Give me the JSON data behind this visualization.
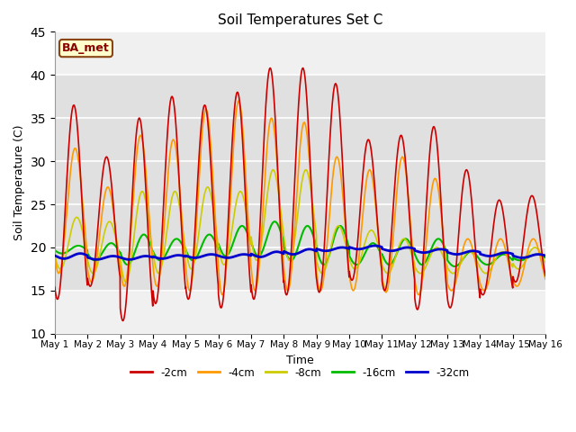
{
  "title": "Soil Temperatures Set C",
  "xlabel": "Time",
  "ylabel": "Soil Temperature (C)",
  "ylim": [
    10,
    45
  ],
  "xlim": [
    0,
    15
  ],
  "annotation": "BA_met",
  "bg_band": [
    15,
    40
  ],
  "bg_color": "#e0e0e0",
  "xtick_labels": [
    "May 1",
    "May 2",
    "May 3",
    "May 4",
    "May 5",
    "May 6",
    "May 7",
    "May 8",
    "May 9",
    "May 10",
    "May 11",
    "May 12",
    "May 13",
    "May 14",
    "May 15",
    "May 16"
  ],
  "legend": [
    {
      "label": "-2cm",
      "color": "#cc0000"
    },
    {
      "label": "-4cm",
      "color": "#ff9900"
    },
    {
      "label": "-8cm",
      "color": "#cccc00"
    },
    {
      "label": "-16cm",
      "color": "#00bb00"
    },
    {
      "label": "-32cm",
      "color": "#0000cc"
    }
  ],
  "cm2_peaks": [
    36.5,
    30.5,
    35.0,
    37.5,
    36.5,
    38.0,
    40.8,
    40.8,
    39.0,
    32.5,
    33.0,
    34.0,
    29.0,
    25.5,
    26.0
  ],
  "cm2_troughs": [
    14.0,
    15.5,
    11.5,
    13.5,
    14.0,
    13.0,
    14.0,
    14.5,
    14.8,
    16.2,
    15.0,
    12.8,
    13.0,
    14.5,
    16.0
  ],
  "cm4_peaks": [
    31.5,
    27.0,
    33.0,
    32.5,
    36.0,
    37.0,
    35.0,
    34.5,
    30.5,
    29.0,
    30.5,
    28.0,
    21.0,
    21.0,
    21.0
  ],
  "cm4_troughs": [
    17.0,
    16.0,
    15.5,
    15.5,
    15.0,
    14.5,
    15.0,
    15.0,
    15.0,
    15.0,
    14.8,
    14.5,
    15.0,
    15.0,
    15.5
  ],
  "cm8_peaks": [
    23.5,
    23.0,
    26.5,
    26.5,
    27.0,
    26.5,
    29.0,
    29.0,
    22.5,
    22.0,
    21.0,
    20.0,
    19.5,
    19.5,
    20.0
  ],
  "cm8_troughs": [
    17.5,
    17.0,
    16.0,
    17.0,
    17.5,
    18.0,
    18.5,
    18.5,
    17.0,
    17.5,
    17.0,
    17.0,
    17.0,
    17.0,
    17.5
  ],
  "cm16_peaks": [
    20.2,
    20.5,
    21.5,
    21.0,
    21.5,
    22.5,
    23.0,
    22.5,
    22.5,
    20.5,
    21.0,
    21.0,
    19.5,
    19.2,
    19.2
  ],
  "cm16_troughs": [
    19.3,
    18.5,
    18.0,
    18.5,
    18.5,
    19.0,
    19.0,
    18.5,
    18.0,
    18.0,
    18.0,
    18.0,
    17.8,
    18.0,
    18.5
  ],
  "cm32_base": [
    19.0,
    18.8,
    18.8,
    18.9,
    19.0,
    19.0,
    19.2,
    19.5,
    19.8,
    20.0,
    19.8,
    19.6,
    19.4,
    19.2,
    19.0
  ],
  "cm32_amp": [
    0.3,
    0.2,
    0.2,
    0.2,
    0.2,
    0.2,
    0.3,
    0.3,
    0.2,
    0.2,
    0.2,
    0.2,
    0.2,
    0.2,
    0.2
  ]
}
